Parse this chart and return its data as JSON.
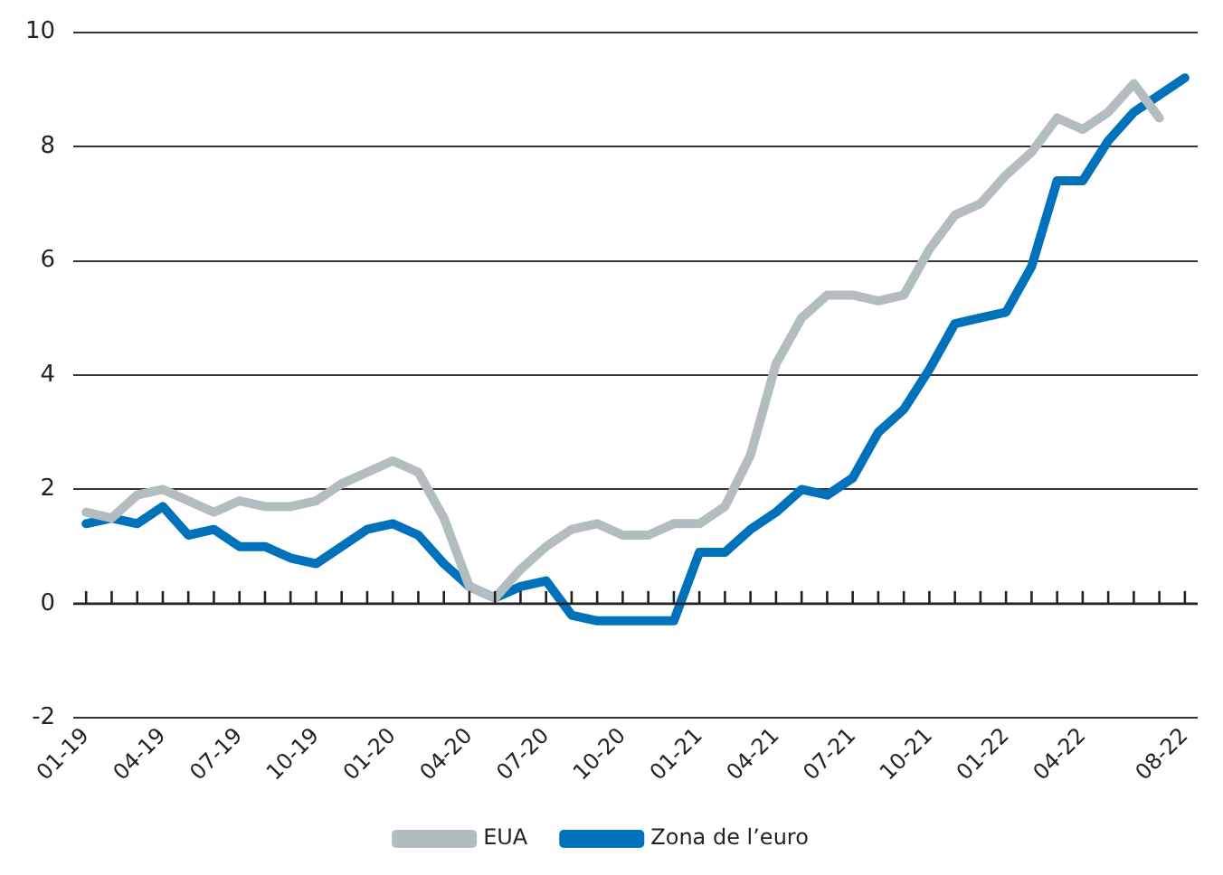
{
  "chart_data": {
    "type": "line",
    "categories": [
      "01-19",
      null,
      null,
      "04-19",
      null,
      null,
      "07-19",
      null,
      null,
      "10-19",
      null,
      null,
      "01-20",
      null,
      null,
      "04-20",
      null,
      null,
      "07-20",
      null,
      null,
      "10-20",
      null,
      null,
      "01-21",
      null,
      null,
      "04-21",
      null,
      null,
      "07-21",
      null,
      null,
      "10-21",
      null,
      null,
      "01-22",
      null,
      null,
      "04-22",
      null,
      null,
      null,
      "08-22"
    ],
    "series": [
      {
        "name": "EUA",
        "color": "#b3bcbf",
        "values": [
          1.6,
          1.5,
          1.9,
          2.0,
          1.8,
          1.6,
          1.8,
          1.7,
          1.7,
          1.8,
          2.1,
          2.3,
          2.5,
          2.3,
          1.5,
          0.3,
          0.1,
          0.6,
          1.0,
          1.3,
          1.4,
          1.2,
          1.2,
          1.4,
          1.4,
          1.7,
          2.6,
          4.2,
          5.0,
          5.4,
          5.4,
          5.3,
          5.4,
          6.2,
          6.8,
          7.0,
          7.5,
          7.9,
          8.5,
          8.3,
          8.6,
          9.1,
          8.5,
          null
        ]
      },
      {
        "name": "Zona de l’euro",
        "color": "#0072bb",
        "values": [
          1.4,
          1.5,
          1.4,
          1.7,
          1.2,
          1.3,
          1.0,
          1.0,
          0.8,
          0.7,
          1.0,
          1.3,
          1.4,
          1.2,
          0.7,
          0.3,
          0.1,
          0.3,
          0.4,
          -0.2,
          -0.3,
          -0.3,
          -0.3,
          -0.3,
          0.9,
          0.9,
          1.3,
          1.6,
          2.0,
          1.9,
          2.2,
          3.0,
          3.4,
          4.1,
          4.9,
          5.0,
          5.1,
          5.9,
          7.4,
          7.4,
          8.1,
          8.6,
          8.9,
          9.2
        ]
      }
    ],
    "ylim": [
      -2,
      10
    ],
    "yticks": [
      -2,
      0,
      2,
      4,
      6,
      8,
      10
    ],
    "grid": "y",
    "legend": "bottom",
    "marker": "none",
    "line_style": "solid"
  }
}
